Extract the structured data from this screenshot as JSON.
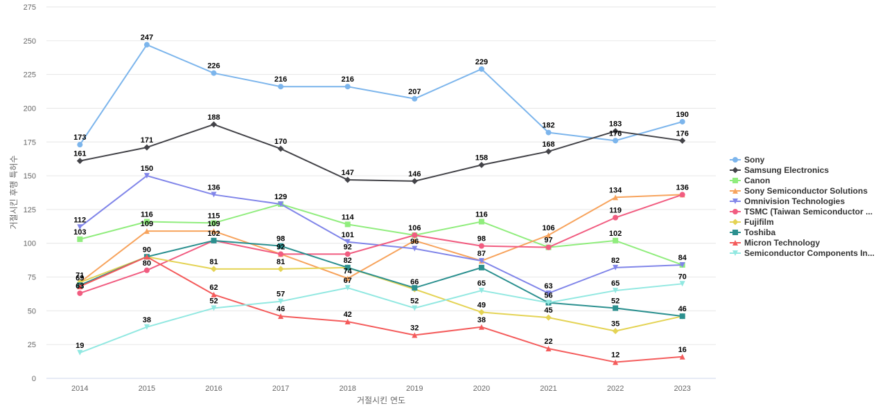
{
  "chart_data": {
    "type": "line",
    "title": "",
    "xlabel": "거절시킨 연도",
    "ylabel": "거절시킨 후행 특허수",
    "ylim": [
      0,
      275
    ],
    "yticks": [
      0,
      25,
      50,
      75,
      100,
      125,
      150,
      175,
      200,
      225,
      250,
      275
    ],
    "grid": true,
    "legend_position": "right",
    "x": [
      "2014",
      "2015",
      "2016",
      "2017",
      "2018",
      "2019",
      "2020",
      "2021",
      "2022",
      "2023"
    ],
    "series": [
      {
        "name": "Sony",
        "color": "#7cb5ec",
        "marker": "circle",
        "values": [
          173,
          247,
          226,
          216,
          216,
          207,
          229,
          182,
          176,
          190
        ]
      },
      {
        "name": "Samsung Electronics",
        "color": "#434348",
        "marker": "diamond",
        "values": [
          161,
          171,
          188,
          170,
          147,
          146,
          158,
          168,
          183,
          176
        ]
      },
      {
        "name": "Canon",
        "color": "#90ed7d",
        "marker": "square",
        "values": [
          103,
          116,
          115,
          129,
          114,
          106,
          116,
          97,
          102,
          84
        ]
      },
      {
        "name": "Sony Semiconductor Solutions",
        "color": "#f7a35c",
        "marker": "triangle",
        "values": [
          71,
          109,
          109,
          92,
          74,
          102,
          87,
          106,
          134,
          136
        ]
      },
      {
        "name": "Omnivision Technologies",
        "color": "#8085e9",
        "marker": "triangle-down",
        "values": [
          112,
          150,
          136,
          129,
          101,
          96,
          87,
          63,
          82,
          84
        ]
      },
      {
        "name": "TSMC (Taiwan Semiconductor ...",
        "color": "#f15c80",
        "marker": "circle",
        "values": [
          63,
          80,
          102,
          92,
          92,
          106,
          98,
          97,
          119,
          136
        ]
      },
      {
        "name": "Fujifilm",
        "color": "#e4d354",
        "marker": "diamond",
        "values": [
          71,
          90,
          81,
          81,
          82,
          66,
          49,
          45,
          35,
          46
        ]
      },
      {
        "name": "Toshiba",
        "color": "#2b908f",
        "marker": "square",
        "values": [
          69,
          90,
          102,
          98,
          82,
          67,
          82,
          56,
          52,
          46
        ]
      },
      {
        "name": "Micron Technology",
        "color": "#f45b5b",
        "marker": "triangle",
        "values": [
          68,
          90,
          62,
          46,
          42,
          32,
          38,
          22,
          12,
          16
        ]
      },
      {
        "name": "Semiconductor Components In...",
        "color": "#91e8e1",
        "marker": "triangle-down",
        "values": [
          19,
          38,
          52,
          57,
          67,
          52,
          65,
          56,
          65,
          70
        ]
      }
    ],
    "data_labels": [
      {
        "x": "2014",
        "text": "173",
        "value": 173
      },
      {
        "x": "2015",
        "text": "247",
        "value": 247
      },
      {
        "x": "2016",
        "text": "226",
        "value": 226
      },
      {
        "x": "2017",
        "text": "216",
        "value": 216
      },
      {
        "x": "2018",
        "text": "216",
        "value": 216
      },
      {
        "x": "2019",
        "text": "207",
        "value": 207
      },
      {
        "x": "2020",
        "text": "229",
        "value": 229
      },
      {
        "x": "2021",
        "text": "182",
        "value": 182
      },
      {
        "x": "2022",
        "text": "183",
        "value": 183
      },
      {
        "x": "2023",
        "text": "190",
        "value": 190
      },
      {
        "x": "2014",
        "text": "161",
        "value": 161
      },
      {
        "x": "2015",
        "text": "171",
        "value": 171
      },
      {
        "x": "2016",
        "text": "188",
        "value": 188
      },
      {
        "x": "2017",
        "text": "170",
        "value": 170
      },
      {
        "x": "2018",
        "text": "147",
        "value": 147
      },
      {
        "x": "2019",
        "text": "146",
        "value": 146
      },
      {
        "x": "2020",
        "text": "158",
        "value": 158
      },
      {
        "x": "2021",
        "text": "168",
        "value": 168
      },
      {
        "x": "2022",
        "text": "176",
        "value": 176
      },
      {
        "x": "2023",
        "text": "176",
        "value": 176
      },
      {
        "x": "2014",
        "text": "112",
        "value": 112
      },
      {
        "x": "2015",
        "text": "150",
        "value": 150
      },
      {
        "x": "2016",
        "text": "136",
        "value": 136
      },
      {
        "x": "2017",
        "text": "129",
        "value": 129
      },
      {
        "x": "2018",
        "text": "114",
        "value": 114
      },
      {
        "x": "2019",
        "text": "106",
        "value": 106
      },
      {
        "x": "2020",
        "text": "116",
        "value": 116
      },
      {
        "x": "2021",
        "text": "106",
        "value": 106
      },
      {
        "x": "2022",
        "text": "134",
        "value": 134
      },
      {
        "x": "2023",
        "text": "136",
        "value": 136
      },
      {
        "x": "2014",
        "text": "103",
        "value": 103
      },
      {
        "x": "2015",
        "text": "116",
        "value": 116
      },
      {
        "x": "2016",
        "text": "115",
        "value": 115
      },
      {
        "x": "2018",
        "text": "101",
        "value": 101
      },
      {
        "x": "2022",
        "text": "119",
        "value": 119
      },
      {
        "x": "2015",
        "text": "109",
        "value": 109
      },
      {
        "x": "2016",
        "text": "109",
        "value": 109
      },
      {
        "x": "2017",
        "text": "98",
        "value": 98
      },
      {
        "x": "2018",
        "text": "92",
        "value": 92
      },
      {
        "x": "2019",
        "text": "96",
        "value": 96
      },
      {
        "x": "2020",
        "text": "98",
        "value": 98
      },
      {
        "x": "2021",
        "text": "97",
        "value": 97
      },
      {
        "x": "2022",
        "text": "102",
        "value": 102
      },
      {
        "x": "2016",
        "text": "102",
        "value": 102
      },
      {
        "x": "2017",
        "text": "92",
        "value": 92
      },
      {
        "x": "2020",
        "text": "87",
        "value": 87
      },
      {
        "x": "2014",
        "text": "71",
        "value": 71
      },
      {
        "x": "2015",
        "text": "90",
        "value": 90
      },
      {
        "x": "2015",
        "text": "80",
        "value": 80
      },
      {
        "x": "2016",
        "text": "81",
        "value": 81
      },
      {
        "x": "2017",
        "text": "81",
        "value": 81
      },
      {
        "x": "2018",
        "text": "82",
        "value": 82
      },
      {
        "x": "2022",
        "text": "82",
        "value": 82
      },
      {
        "x": "2023",
        "text": "84",
        "value": 84
      },
      {
        "x": "2014",
        "text": "69",
        "value": 69
      },
      {
        "x": "2014",
        "text": "63",
        "value": 63
      },
      {
        "x": "2018",
        "text": "74",
        "value": 74
      },
      {
        "x": "2018",
        "text": "67",
        "value": 67
      },
      {
        "x": "2019",
        "text": "66",
        "value": 66
      },
      {
        "x": "2020",
        "text": "65",
        "value": 65
      },
      {
        "x": "2021",
        "text": "63",
        "value": 63
      },
      {
        "x": "2021",
        "text": "56",
        "value": 56
      },
      {
        "x": "2022",
        "text": "65",
        "value": 65
      },
      {
        "x": "2023",
        "text": "70",
        "value": 70
      },
      {
        "x": "2016",
        "text": "62",
        "value": 62
      },
      {
        "x": "2016",
        "text": "52",
        "value": 52
      },
      {
        "x": "2017",
        "text": "57",
        "value": 57
      },
      {
        "x": "2019",
        "text": "52",
        "value": 52
      },
      {
        "x": "2020",
        "text": "49",
        "value": 49
      },
      {
        "x": "2021",
        "text": "45",
        "value": 45
      },
      {
        "x": "2022",
        "text": "52",
        "value": 52
      },
      {
        "x": "2023",
        "text": "46",
        "value": 46
      },
      {
        "x": "2017",
        "text": "46",
        "value": 46
      },
      {
        "x": "2018",
        "text": "42",
        "value": 42
      },
      {
        "x": "2015",
        "text": "38",
        "value": 38
      },
      {
        "x": "2020",
        "text": "38",
        "value": 38
      },
      {
        "x": "2022",
        "text": "35",
        "value": 35
      },
      {
        "x": "2019",
        "text": "32",
        "value": 32
      },
      {
        "x": "2021",
        "text": "22",
        "value": 22
      },
      {
        "x": "2014",
        "text": "19",
        "value": 19
      },
      {
        "x": "2023",
        "text": "16",
        "value": 16
      },
      {
        "x": "2022",
        "text": "12",
        "value": 12
      }
    ]
  }
}
